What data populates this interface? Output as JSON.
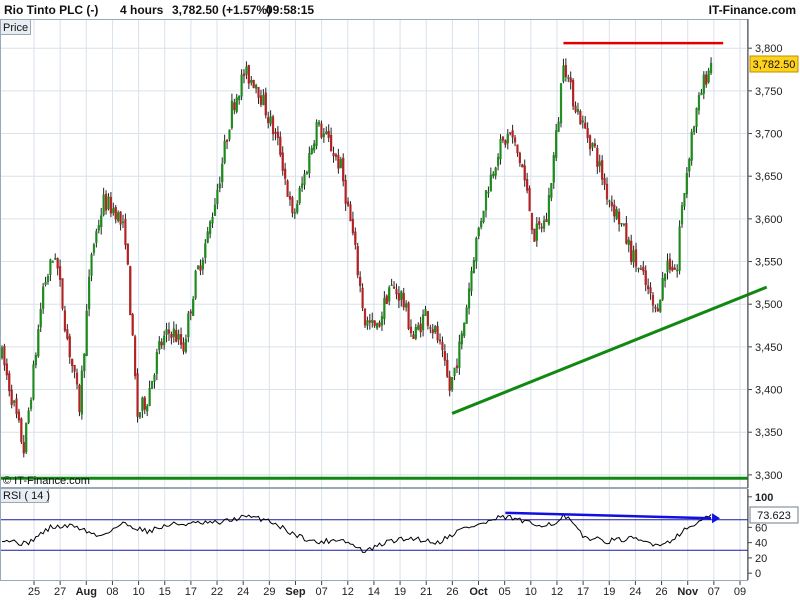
{
  "header": {
    "title": "Rio Tinto PLC (-)",
    "timeframe": "4 hours",
    "price_change": "3,782.50 (+1.57%)",
    "time": "09:58:15",
    "brand": "IT-Finance.com",
    "price_label": "Price"
  },
  "watermark": "© IT-Finance.com",
  "rsi_label": "RSI ( 14 )",
  "colors": {
    "up": "#1e8a1e",
    "down": "#b22222",
    "resistance": "#e00000",
    "support": "#118811",
    "rsi_line": "#000000",
    "rsi_band": "#1a1aa0",
    "rsi_trend": "#1010e0",
    "badge_bg": "#ffd21f",
    "grid": "#d8e2ec"
  },
  "chart_data": [
    {
      "type": "candlestick",
      "title": "Rio Tinto PLC (-)",
      "ylim": [
        3294,
        3826
      ],
      "yticks": [
        "3,300",
        "3,350",
        "3,400",
        "3,450",
        "3,500",
        "3,550",
        "3,600",
        "3,650",
        "3,700",
        "3,750",
        "3,800"
      ],
      "ytick_values": [
        3300,
        3350,
        3400,
        3450,
        3500,
        3550,
        3600,
        3650,
        3700,
        3750,
        3800
      ],
      "xticks": [
        "25",
        "27",
        "Aug",
        "08",
        "10",
        "15",
        "17",
        "22",
        "24",
        "29",
        "Sep",
        "07",
        "12",
        "14",
        "19",
        "21",
        "26",
        "Oct",
        "05",
        "10",
        "12",
        "17",
        "19",
        "24",
        "26",
        "Nov",
        "07",
        "09"
      ],
      "last_price": "3,782.50",
      "waypoints": [
        [
          0,
          3440
        ],
        [
          5,
          3380
        ],
        [
          9,
          3330
        ],
        [
          13,
          3420
        ],
        [
          17,
          3520
        ],
        [
          22,
          3560
        ],
        [
          27,
          3460
        ],
        [
          32,
          3380
        ],
        [
          37,
          3560
        ],
        [
          42,
          3620
        ],
        [
          47,
          3610
        ],
        [
          51,
          3580
        ],
        [
          56,
          3370
        ],
        [
          60,
          3390
        ],
        [
          65,
          3450
        ],
        [
          70,
          3470
        ],
        [
          75,
          3450
        ],
        [
          80,
          3530
        ],
        [
          85,
          3580
        ],
        [
          90,
          3650
        ],
        [
          95,
          3730
        ],
        [
          100,
          3770
        ],
        [
          105,
          3760
        ],
        [
          110,
          3720
        ],
        [
          115,
          3680
        ],
        [
          120,
          3600
        ],
        [
          125,
          3650
        ],
        [
          130,
          3710
        ],
        [
          135,
          3690
        ],
        [
          140,
          3660
        ],
        [
          145,
          3580
        ],
        [
          150,
          3480
        ],
        [
          155,
          3470
        ],
        [
          160,
          3520
        ],
        [
          165,
          3510
        ],
        [
          170,
          3460
        ],
        [
          175,
          3490
        ],
        [
          180,
          3460
        ],
        [
          185,
          3400
        ],
        [
          190,
          3460
        ],
        [
          195,
          3560
        ],
        [
          200,
          3630
        ],
        [
          205,
          3680
        ],
        [
          210,
          3700
        ],
        [
          215,
          3660
        ],
        [
          220,
          3580
        ],
        [
          225,
          3600
        ],
        [
          230,
          3720
        ],
        [
          232,
          3790
        ],
        [
          235,
          3750
        ],
        [
          240,
          3710
        ],
        [
          245,
          3680
        ],
        [
          250,
          3630
        ],
        [
          255,
          3600
        ],
        [
          260,
          3560
        ],
        [
          265,
          3530
        ],
        [
          270,
          3490
        ],
        [
          275,
          3550
        ],
        [
          279,
          3540
        ],
        [
          280,
          3590
        ],
        [
          285,
          3700
        ],
        [
          290,
          3760
        ],
        [
          293,
          3782.5
        ]
      ],
      "annotations": {
        "resistance": {
          "y": 3806,
          "x_from": 232,
          "x_to": 298
        },
        "support_trend": {
          "from": [
            186,
            3372
          ],
          "to": [
            316,
            3520
          ]
        },
        "support_horizontal": {
          "y": 3296
        }
      }
    },
    {
      "type": "line",
      "title": "RSI ( 14 )",
      "ylim": [
        -5,
        105
      ],
      "yticks": [
        "0",
        "20",
        "40",
        "60",
        "100"
      ],
      "ytick_values": [
        0,
        20,
        40,
        60,
        100
      ],
      "bands": [
        30,
        70
      ],
      "last_value": "73.623",
      "waypoints": [
        [
          0,
          45
        ],
        [
          10,
          38
        ],
        [
          20,
          60
        ],
        [
          30,
          62
        ],
        [
          40,
          48
        ],
        [
          50,
          65
        ],
        [
          60,
          55
        ],
        [
          70,
          64
        ],
        [
          80,
          65
        ],
        [
          90,
          66
        ],
        [
          100,
          74
        ],
        [
          110,
          70
        ],
        [
          120,
          52
        ],
        [
          130,
          40
        ],
        [
          140,
          45
        ],
        [
          150,
          28
        ],
        [
          160,
          42
        ],
        [
          170,
          46
        ],
        [
          180,
          40
        ],
        [
          190,
          58
        ],
        [
          200,
          66
        ],
        [
          205,
          72
        ],
        [
          210,
          73
        ],
        [
          215,
          68
        ],
        [
          220,
          63
        ],
        [
          230,
          66
        ],
        [
          232,
          75
        ],
        [
          235,
          68
        ],
        [
          240,
          48
        ],
        [
          250,
          42
        ],
        [
          260,
          45
        ],
        [
          270,
          38
        ],
        [
          275,
          40
        ],
        [
          280,
          52
        ],
        [
          285,
          62
        ],
        [
          290,
          71
        ],
        [
          293,
          73.6
        ]
      ],
      "trend": {
        "from": [
          208,
          79
        ],
        "to": [
          293,
          72
        ]
      }
    }
  ]
}
